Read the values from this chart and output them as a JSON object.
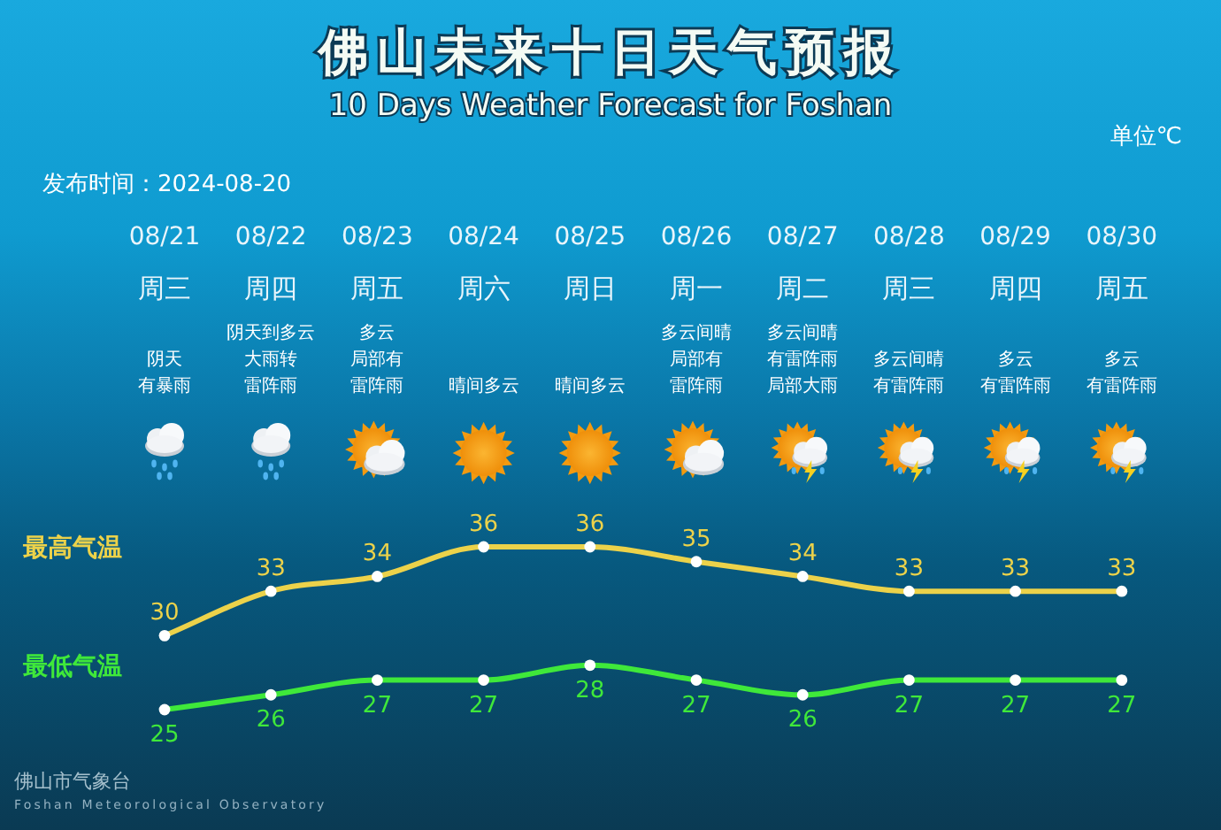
{
  "chart_data": {
    "type": "line",
    "title": "佛山未来十日天气预报",
    "subtitle": "10 Days Weather Forecast for Foshan",
    "categories": [
      "08/21",
      "08/22",
      "08/23",
      "08/24",
      "08/25",
      "08/26",
      "08/27",
      "08/28",
      "08/29",
      "08/30"
    ],
    "series": [
      {
        "name": "最高气温",
        "color": "#ecd24a",
        "values": [
          30,
          33,
          34,
          36,
          36,
          35,
          34,
          33,
          33,
          33
        ]
      },
      {
        "name": "最低气温",
        "color": "#3fe83a",
        "values": [
          25,
          26,
          27,
          27,
          28,
          27,
          26,
          27,
          27,
          27
        ]
      }
    ],
    "data_labels": true,
    "marker": "circle",
    "tick_labels": "x",
    "annotations": [
      "发布时间：2024-08-20",
      "单位℃",
      "周三",
      "周四",
      "周五",
      "周六",
      "周日",
      "周一",
      "周二",
      "周三",
      "周四",
      "周五",
      "阴天有暴雨",
      "阴天到多云大雨转雷阵雨",
      "多云局部有雷阵雨",
      "晴间多云",
      "晴间多云",
      "多云间晴局部有雷阵雨",
      "多云间晴有雷阵雨局部大雨",
      "多云间晴有雷阵雨",
      "多云有雷阵雨",
      "多云有雷阵雨",
      "佛山市气象台",
      "Foshan Meteorological Observatory"
    ]
  }
}
